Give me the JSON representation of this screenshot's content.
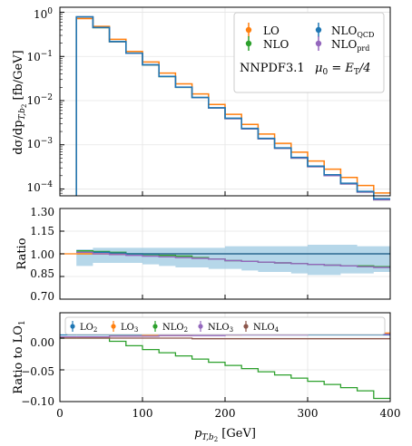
{
  "colors": {
    "LO": "#ff7f0e",
    "NLO": "#2ca02c",
    "NLO_QCD": "#1f77b4",
    "NLO_prd": "#9467bd",
    "band": "#9ecae1",
    "NLO4": "#8c564b"
  },
  "chart_data": [
    {
      "type": "line",
      "panel": "main",
      "drawstyle": "step",
      "yscale": "log",
      "ylabel": "dσ/dp",
      "ylabel_sub": "T,b",
      "ylabel_subsub": "2",
      "ylabel_tail": " [fb/GeV]",
      "ylim": [
        7e-05,
        1.3
      ],
      "y_tick_bases": [
        "10",
        "10",
        "10",
        "10",
        "10"
      ],
      "y_tick_exps": [
        "0",
        "−1",
        "−2",
        "−3",
        "−4"
      ],
      "xlim": [
        0,
        400
      ],
      "bin_edges": [
        20,
        40,
        60,
        80,
        100,
        120,
        140,
        160,
        180,
        200,
        220,
        240,
        260,
        280,
        300,
        320,
        340,
        360,
        380,
        400
      ],
      "legend": {
        "position": "top-right",
        "labels": [
          "LO",
          "NLO",
          "NLO",
          "NLO"
        ],
        "subscripts": [
          "",
          "",
          "QCD",
          "prd"
        ],
        "pdf_label": "NNPDF3.1",
        "scale_label": "μ",
        "scale_sub": "0",
        "scale_eq": " = E",
        "scale_sub2": "T",
        "scale_tail": "/4"
      },
      "series": [
        {
          "name": "LO",
          "values": [
            0.72,
            0.48,
            0.245,
            0.13,
            0.075,
            0.042,
            0.024,
            0.0142,
            0.0082,
            0.0049,
            0.0029,
            0.00175,
            0.00108,
            0.00068,
            0.00043,
            0.00028,
            0.000182,
            0.00012,
            8.1e-05
          ]
        },
        {
          "name": "NLO",
          "values": [
            0.78,
            0.45,
            0.215,
            0.118,
            0.064,
            0.035,
            0.02,
            0.0117,
            0.0068,
            0.0039,
            0.0023,
            0.00137,
            0.00083,
            0.0005,
            0.00032,
            0.0002,
            0.00013,
            8.5e-05,
            5.7e-05
          ]
        },
        {
          "name": "NLO_QCD",
          "values": [
            0.79,
            0.455,
            0.218,
            0.119,
            0.065,
            0.0355,
            0.0202,
            0.0118,
            0.0069,
            0.004,
            0.00235,
            0.0014,
            0.00085,
            0.00052,
            0.00033,
            0.00021,
            0.000135,
            8.8e-05,
            6e-05
          ]
        },
        {
          "name": "NLO_prd",
          "values": [
            0.785,
            0.452,
            0.216,
            0.118,
            0.0645,
            0.0352,
            0.0201,
            0.0117,
            0.0068,
            0.0039,
            0.0023,
            0.00137,
            0.00083,
            0.0005,
            0.00032,
            0.0002,
            0.00013,
            8.5e-05,
            5.7e-05
          ]
        }
      ]
    },
    {
      "type": "line",
      "panel": "ratio",
      "drawstyle": "step",
      "ylabel": "Ratio",
      "ylim": [
        0.7,
        1.3
      ],
      "y_ticks": [
        0.7,
        0.85,
        1.0,
        1.15,
        1.3
      ],
      "y_tick_labels": [
        "0.70",
        "0.85",
        "1.00",
        "1.15",
        "1.30"
      ],
      "bin_edges": [
        20,
        40,
        60,
        80,
        100,
        120,
        140,
        160,
        180,
        200,
        220,
        240,
        260,
        280,
        300,
        320,
        340,
        360,
        380,
        400
      ],
      "band": {
        "name": "NLO_QCD",
        "lower": [
          0.92,
          0.94,
          0.94,
          0.94,
          0.93,
          0.92,
          0.91,
          0.91,
          0.9,
          0.9,
          0.89,
          0.88,
          0.88,
          0.87,
          0.86,
          0.86,
          0.87,
          0.87,
          0.88
        ],
        "upper": [
          1.03,
          1.04,
          1.04,
          1.04,
          1.04,
          1.04,
          1.04,
          1.04,
          1.04,
          1.05,
          1.05,
          1.05,
          1.05,
          1.05,
          1.06,
          1.06,
          1.06,
          1.05,
          1.05
        ]
      },
      "series": [
        {
          "name": "LO",
          "values": [
            1.0,
            1.0,
            1.0,
            1.0,
            1.0,
            1.0,
            1.0,
            1.0,
            1.0,
            1.0,
            1.0,
            1.0,
            1.0,
            1.0,
            1.0,
            1.0,
            1.0,
            1.0,
            1.0
          ]
        },
        {
          "name": "NLO",
          "values": [
            1.02,
            1.015,
            1.01,
            1.0,
            0.995,
            0.99,
            0.985,
            0.975,
            0.965,
            0.955,
            0.95,
            0.945,
            0.94,
            0.935,
            0.93,
            0.925,
            0.92,
            0.92,
            0.915
          ]
        },
        {
          "name": "NLO_QCD",
          "values": [
            1.01,
            1.01,
            1.005,
            1.0,
            1.0,
            1.0,
            1.0,
            1.0,
            1.0,
            1.0,
            1.0,
            1.0,
            1.0,
            1.0,
            1.0,
            1.0,
            1.0,
            1.0,
            1.0
          ]
        },
        {
          "name": "NLO_prd",
          "values": [
            1.01,
            1.0,
            0.995,
            0.99,
            0.985,
            0.98,
            0.975,
            0.97,
            0.965,
            0.955,
            0.95,
            0.945,
            0.94,
            0.935,
            0.93,
            0.925,
            0.92,
            0.915,
            0.91
          ]
        }
      ]
    },
    {
      "type": "line",
      "panel": "ratio-to-lo1",
      "drawstyle": "step",
      "ylabel": "Ratio to LO",
      "ylabel_sub": "1",
      "xlabel": "p",
      "xlabel_sub": "T,b",
      "xlabel_subsub": "2",
      "xlabel_tail": " [GeV]",
      "xlim": [
        0,
        400
      ],
      "x_ticks": [
        0,
        100,
        200,
        300,
        400
      ],
      "x_tick_labels": [
        "0",
        "100",
        "200",
        "300",
        "400"
      ],
      "ylim": [
        -0.1,
        0.04
      ],
      "y_ticks": [
        0.0,
        -0.05,
        -0.1
      ],
      "y_tick_labels": [
        "0.00",
        "−0.05",
        "−0.10"
      ],
      "bin_edges": [
        20,
        40,
        60,
        80,
        100,
        120,
        140,
        160,
        180,
        200,
        220,
        240,
        260,
        280,
        300,
        320,
        340,
        360,
        380,
        400
      ],
      "legend": {
        "position": "top",
        "labels": [
          "LO",
          "LO",
          "NLO",
          "NLO",
          "NLO"
        ],
        "subscripts": [
          "2",
          "3",
          "2",
          "3",
          "4"
        ]
      },
      "series": [
        {
          "name": "LO2",
          "values": [
            0.005,
            0.005,
            0.005,
            0.005,
            0.005,
            0.005,
            0.005,
            0.005,
            0.005,
            0.005,
            0.005,
            0.005,
            0.005,
            0.005,
            0.005,
            0.005,
            0.005,
            0.005,
            0.005
          ]
        },
        {
          "name": "LO3",
          "values": [
            0.002,
            0.002,
            0.003,
            0.003,
            0.004,
            0.004,
            0.004,
            0.005,
            0.005,
            0.005,
            0.006,
            0.006,
            0.006,
            0.006,
            0.007,
            0.007,
            0.007,
            0.007,
            0.008
          ]
        },
        {
          "name": "NLO2",
          "values": [
            0.0,
            0.0,
            -0.005,
            -0.012,
            -0.018,
            -0.023,
            -0.028,
            -0.033,
            -0.038,
            -0.043,
            -0.048,
            -0.053,
            -0.058,
            -0.063,
            -0.068,
            -0.073,
            -0.078,
            -0.083,
            -0.095
          ]
        },
        {
          "name": "NLO3",
          "values": [
            0.002,
            0.002,
            0.003,
            0.003,
            0.003,
            0.004,
            0.004,
            0.004,
            0.004,
            0.005,
            0.005,
            0.005,
            0.005,
            0.005,
            0.006,
            0.006,
            0.006,
            0.006,
            0.006
          ]
        },
        {
          "name": "NLO4",
          "values": [
            0.0,
            0.0,
            0.0,
            0.0,
            0.0,
            0.0,
            0.0,
            -0.001,
            -0.001,
            -0.001,
            -0.001,
            -0.001,
            -0.001,
            -0.001,
            -0.001,
            -0.001,
            -0.001,
            -0.001,
            -0.001
          ]
        }
      ]
    }
  ]
}
